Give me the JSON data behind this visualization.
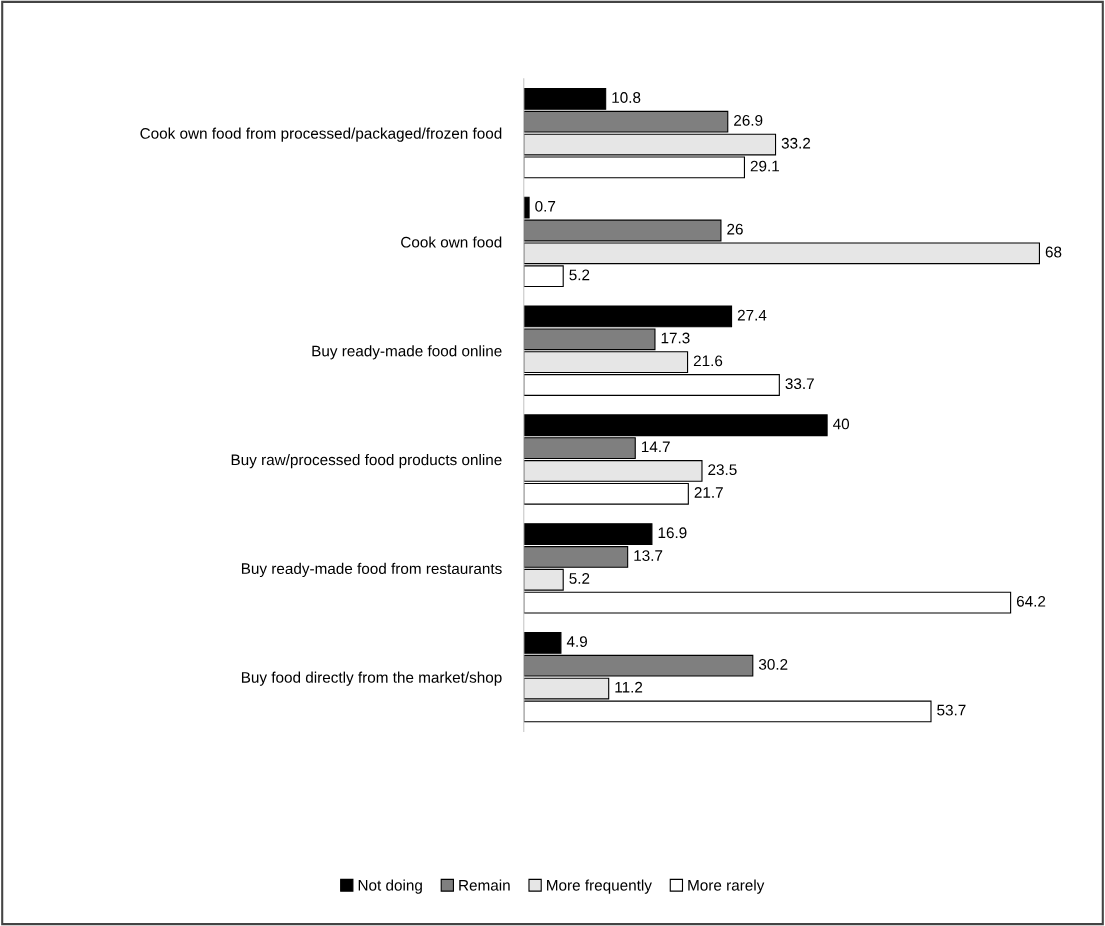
{
  "chart_data": {
    "type": "bar",
    "orientation": "horizontal",
    "data_labels": true,
    "legend": "bottom",
    "grid": false,
    "tick_labels": "y",
    "categories": [
      "Cook own food from processed/packaged/frozen food",
      "Cook own food",
      "Buy ready-made food online",
      "Buy raw/processed food products online",
      "Buy ready-made food from restaurants",
      "Buy food directly from the market/shop"
    ],
    "series": [
      {
        "name": "Not doing",
        "color": "#000000",
        "values": [
          10.8,
          0.7,
          27.4,
          40,
          16.9,
          4.9
        ]
      },
      {
        "name": "Remain",
        "color": "#7f7f7f",
        "values": [
          26.9,
          26,
          17.3,
          14.7,
          13.7,
          30.2
        ]
      },
      {
        "name": "More frequently",
        "color": "#e6e6e6",
        "values": [
          33.2,
          68,
          21.6,
          23.5,
          5.2,
          11.2
        ]
      },
      {
        "name": "More rarely",
        "color": "#ffffff",
        "values": [
          29.1,
          5.2,
          33.7,
          21.7,
          64.2,
          53.7
        ]
      }
    ]
  }
}
